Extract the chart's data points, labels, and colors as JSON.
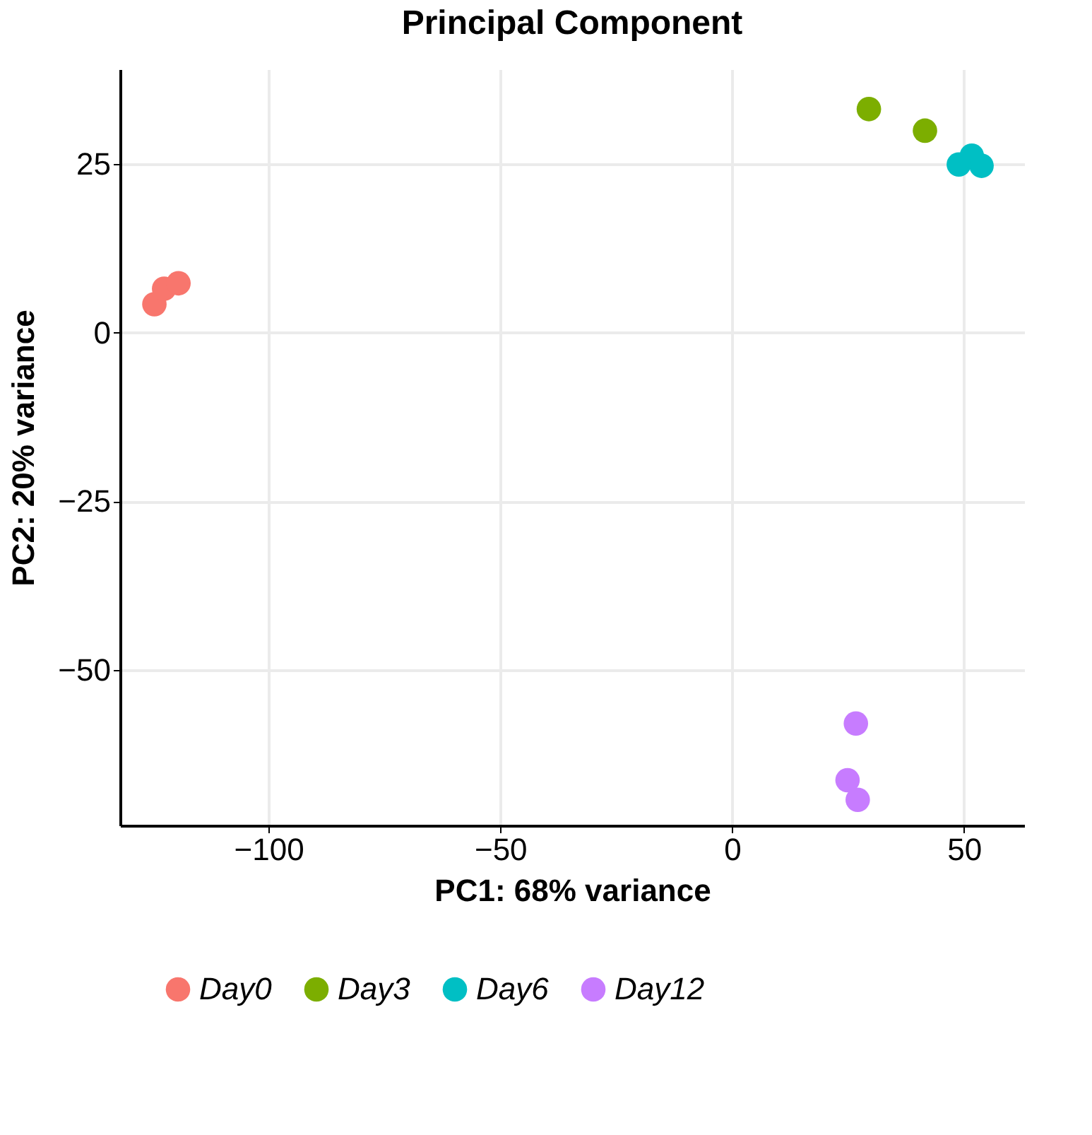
{
  "chart_data": {
    "type": "scatter",
    "title": "Principal Component",
    "xlabel": "PC1: 68% variance",
    "ylabel": "PC2: 20% variance",
    "series": [
      {
        "name": "Day0",
        "color": "#f8766d",
        "x": [
          -124.6,
          -122.5,
          -119.4
        ],
        "values": [
          4.2,
          6.5,
          7.3
        ]
      },
      {
        "name": "Day3",
        "color": "#7cae00",
        "x": [
          29.5,
          41.6
        ],
        "values": [
          33.1,
          29.9
        ]
      },
      {
        "name": "Day6",
        "color": "#00bfc4",
        "x": [
          48.9,
          51.7,
          53.8
        ],
        "values": [
          24.9,
          26.2,
          24.7
        ]
      },
      {
        "name": "Day12",
        "color": "#c77cff",
        "x": [
          26.7,
          24.9,
          27.1
        ],
        "values": [
          -57.9,
          -66.3,
          -69.2
        ]
      }
    ],
    "xlim": [
      -132,
      63
    ],
    "ylim": [
      -73,
      39
    ],
    "xticks": [
      -100,
      -50,
      0,
      50
    ],
    "yticks": [
      -50,
      -25,
      0,
      25
    ],
    "grid": true,
    "legend": "bottom",
    "marker": "circle"
  }
}
